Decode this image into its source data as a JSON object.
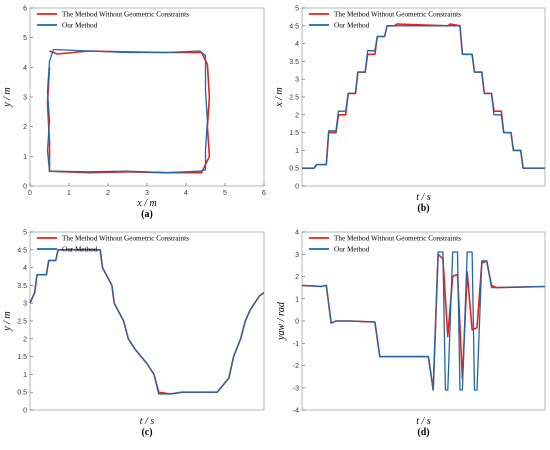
{
  "colors": {
    "without": "#e8211b",
    "ours": "#1f67a8",
    "axis": "#222222"
  },
  "chart_data": [
    {
      "panel": "(a)",
      "type": "line",
      "xlabel": "x / m",
      "ylabel": "y / m",
      "xlim": [
        0,
        6
      ],
      "ylim": [
        0,
        6
      ],
      "xticks": [
        "0",
        "1",
        "2",
        "3",
        "4",
        "5",
        "6"
      ],
      "yticks": [
        "0",
        "1",
        "2",
        "3",
        "4",
        "5",
        "6"
      ],
      "legend": "top-left",
      "series": [
        {
          "name": "The Method Without Geometric Constraints",
          "color": "#e8211b",
          "x": [
            0.5,
            0.7,
            1.5,
            2.5,
            3.5,
            4.4,
            4.55,
            4.6,
            4.55,
            4.6,
            4.4,
            3.5,
            2.5,
            1.5,
            0.5,
            0.5,
            0.45,
            0.5
          ],
          "y": [
            4.55,
            4.45,
            4.55,
            4.52,
            4.5,
            4.5,
            4.1,
            3.0,
            2.0,
            1.0,
            0.45,
            0.45,
            0.48,
            0.45,
            0.5,
            1.5,
            2.8,
            4.0
          ]
        },
        {
          "name": "Our Method",
          "color": "#1f67a8",
          "x": [
            0.6,
            1.5,
            2.5,
            3.5,
            4.35,
            4.5,
            4.5,
            4.55,
            4.5,
            4.5,
            4.35,
            3.5,
            2.5,
            1.5,
            0.5,
            0.45,
            0.5,
            0.45,
            0.5,
            0.6
          ],
          "y": [
            4.6,
            4.55,
            4.5,
            4.5,
            4.55,
            4.4,
            3.2,
            2.2,
            1.2,
            0.55,
            0.5,
            0.45,
            0.5,
            0.48,
            0.5,
            1.2,
            2.2,
            3.2,
            4.2,
            4.6
          ]
        }
      ]
    },
    {
      "panel": "(b)",
      "type": "line",
      "xlabel": "t / s",
      "ylabel": "x / m",
      "ylim": [
        0,
        5
      ],
      "yticks": [
        "0",
        "0.5",
        "1",
        "1.5",
        "2",
        "2.5",
        "3",
        "3.5",
        "4",
        "4.5",
        "5"
      ],
      "legend": "top-left",
      "series": [
        {
          "name": "The Method Without Geometric Constraints",
          "color": "#e8211b",
          "x": [
            0,
            0.05,
            0.06,
            0.1,
            0.11,
            0.14,
            0.15,
            0.18,
            0.19,
            0.22,
            0.23,
            0.26,
            0.27,
            0.3,
            0.31,
            0.34,
            0.35,
            0.38,
            0.39,
            0.6,
            0.61,
            0.65,
            0.66,
            0.7,
            0.71,
            0.74,
            0.75,
            0.78,
            0.79,
            0.82,
            0.83,
            0.86,
            0.87,
            0.9,
            0.91,
            1.0
          ],
          "y": [
            0.5,
            0.5,
            0.6,
            0.6,
            1.5,
            1.5,
            2.0,
            2.0,
            2.6,
            2.6,
            3.2,
            3.2,
            3.7,
            3.7,
            4.2,
            4.2,
            4.5,
            4.5,
            4.55,
            4.5,
            4.55,
            4.5,
            3.7,
            3.7,
            3.2,
            3.2,
            2.6,
            2.6,
            2.1,
            2.1,
            1.5,
            1.5,
            1.0,
            1.0,
            0.5,
            0.5
          ]
        },
        {
          "name": "Our Method",
          "color": "#1f67a8",
          "x": [
            0,
            0.05,
            0.06,
            0.1,
            0.11,
            0.14,
            0.15,
            0.18,
            0.19,
            0.22,
            0.23,
            0.26,
            0.27,
            0.3,
            0.31,
            0.34,
            0.35,
            0.38,
            0.39,
            0.6,
            0.61,
            0.65,
            0.66,
            0.7,
            0.71,
            0.74,
            0.75,
            0.78,
            0.79,
            0.82,
            0.83,
            0.86,
            0.87,
            0.9,
            0.91,
            1.0
          ],
          "y": [
            0.5,
            0.5,
            0.6,
            0.6,
            1.55,
            1.55,
            2.1,
            2.1,
            2.6,
            2.6,
            3.2,
            3.2,
            3.8,
            3.8,
            4.2,
            4.2,
            4.5,
            4.5,
            4.5,
            4.5,
            4.5,
            4.5,
            3.7,
            3.7,
            3.2,
            3.2,
            2.6,
            2.6,
            2.0,
            2.0,
            1.5,
            1.5,
            1.0,
            1.0,
            0.5,
            0.5
          ]
        }
      ]
    },
    {
      "panel": "(c)",
      "type": "line",
      "xlabel": "t / s",
      "ylabel": "y / m",
      "ylim": [
        0,
        5
      ],
      "yticks": [
        "0",
        "0.5",
        "1",
        "1.5",
        "2",
        "2.5",
        "3",
        "3.5",
        "4",
        "4.5",
        "5"
      ],
      "legend": "top-left",
      "series": [
        {
          "name": "The Method Without Geometric Constraints",
          "color": "#e8211b",
          "x": [
            0,
            0.02,
            0.03,
            0.07,
            0.08,
            0.11,
            0.12,
            0.2,
            0.3,
            0.31,
            0.35,
            0.36,
            0.4,
            0.42,
            0.45,
            0.5,
            0.53,
            0.55,
            0.6,
            0.65,
            0.7,
            0.75,
            0.8,
            0.85,
            0.87,
            0.9,
            0.92,
            0.94,
            0.96,
            0.98,
            1.0
          ],
          "y": [
            3.0,
            3.3,
            3.8,
            3.8,
            4.2,
            4.2,
            4.5,
            4.5,
            4.5,
            4.0,
            3.5,
            3.0,
            2.5,
            2.0,
            1.7,
            1.3,
            1.0,
            0.5,
            0.45,
            0.5,
            0.5,
            0.5,
            0.5,
            0.9,
            1.5,
            2.0,
            2.5,
            2.8,
            3.0,
            3.2,
            3.3
          ]
        },
        {
          "name": "Our Method",
          "color": "#1f67a8",
          "x": [
            0,
            0.02,
            0.03,
            0.07,
            0.08,
            0.11,
            0.12,
            0.2,
            0.3,
            0.31,
            0.35,
            0.36,
            0.4,
            0.42,
            0.45,
            0.5,
            0.53,
            0.55,
            0.6,
            0.65,
            0.7,
            0.75,
            0.8,
            0.85,
            0.87,
            0.9,
            0.92,
            0.94,
            0.96,
            0.98,
            1.0
          ],
          "y": [
            3.0,
            3.3,
            3.8,
            3.8,
            4.2,
            4.2,
            4.5,
            4.5,
            4.5,
            4.0,
            3.5,
            3.0,
            2.5,
            2.0,
            1.7,
            1.3,
            1.0,
            0.45,
            0.45,
            0.5,
            0.5,
            0.5,
            0.5,
            0.9,
            1.5,
            2.0,
            2.5,
            2.8,
            3.0,
            3.2,
            3.3
          ]
        }
      ]
    },
    {
      "panel": "(d)",
      "type": "line",
      "xlabel": "t / s",
      "ylabel": "yaw / rad",
      "ylim": [
        -4,
        4
      ],
      "yticks": [
        "-4",
        "-3",
        "-2",
        "-1",
        "0",
        "1",
        "2",
        "3",
        "4"
      ],
      "legend": "top-left",
      "series": [
        {
          "name": "The Method Without Geometric Constraints",
          "color": "#e8211b",
          "x": [
            0,
            0.08,
            0.1,
            0.12,
            0.14,
            0.2,
            0.3,
            0.32,
            0.35,
            0.52,
            0.54,
            0.56,
            0.58,
            0.6,
            0.62,
            0.64,
            0.66,
            0.68,
            0.7,
            0.72,
            0.74,
            0.76,
            0.78,
            0.8,
            1.0
          ],
          "y": [
            1.6,
            1.55,
            1.6,
            -0.1,
            0.0,
            0.0,
            -0.05,
            -1.6,
            -1.6,
            -1.6,
            -3.1,
            3.0,
            2.8,
            -0.7,
            2.0,
            2.1,
            -2.6,
            2.2,
            -0.4,
            -0.3,
            2.6,
            2.7,
            1.6,
            1.5,
            1.55
          ]
        },
        {
          "name": "Our Method",
          "color": "#1f67a8",
          "x": [
            0,
            0.08,
            0.1,
            0.12,
            0.14,
            0.2,
            0.3,
            0.32,
            0.35,
            0.52,
            0.54,
            0.56,
            0.58,
            0.59,
            0.6,
            0.62,
            0.64,
            0.65,
            0.66,
            0.68,
            0.7,
            0.71,
            0.72,
            0.74,
            0.76,
            0.78,
            0.8,
            1.0
          ],
          "y": [
            1.6,
            1.55,
            1.6,
            -0.1,
            0.0,
            0.0,
            -0.05,
            -1.6,
            -1.6,
            -1.6,
            -3.1,
            3.1,
            3.1,
            -3.1,
            -3.1,
            3.1,
            3.1,
            -3.1,
            -3.1,
            3.1,
            3.1,
            -3.1,
            -3.1,
            2.7,
            2.7,
            1.5,
            1.5,
            1.55
          ]
        }
      ]
    }
  ],
  "legend_labels": {
    "without": "The Method Without Geometric Constraints",
    "ours": "Our Method"
  }
}
